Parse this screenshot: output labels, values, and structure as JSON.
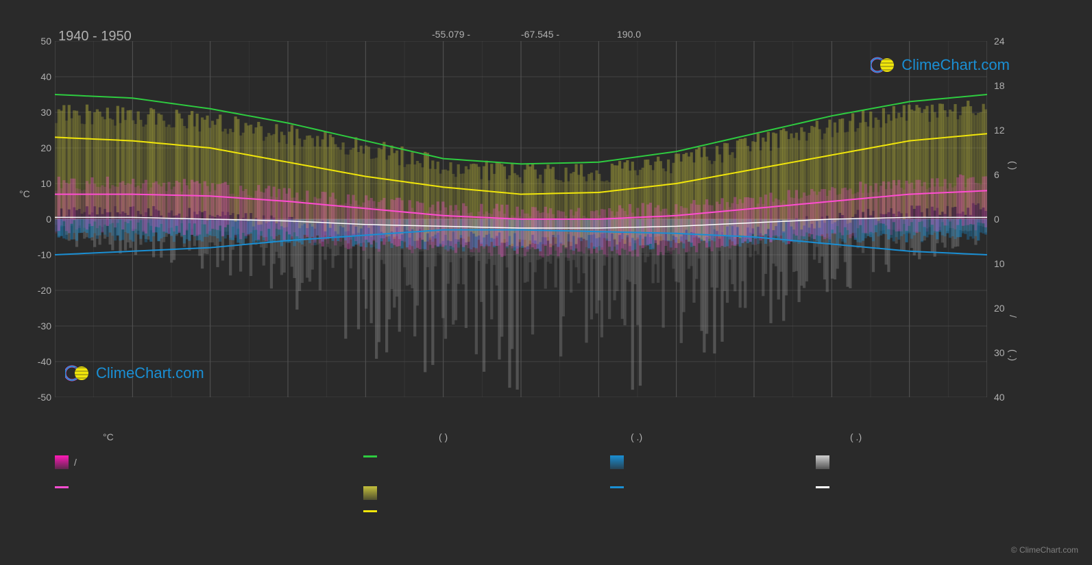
{
  "title": "1940 - 1950",
  "coords": {
    "lat": "-55.079 -",
    "lon": "-67.545 -",
    "elev": "190.0"
  },
  "brand": "ClimeChart.com",
  "copyright": "© ClimeChart.com",
  "chart": {
    "type": "climate-chart",
    "background_color": "#2a2a2a",
    "grid_color": "#555555",
    "grid_color_inner": "#404040",
    "y_left": {
      "title": "°C",
      "min": -50,
      "max": 50,
      "ticks": [
        50,
        40,
        30,
        20,
        10,
        0,
        -10,
        -20,
        -30,
        -40,
        -50
      ],
      "label_fontsize": 14
    },
    "y_right": {
      "min_top": 24,
      "ticks_top": [
        24,
        18,
        12,
        6,
        0
      ],
      "ticks_bottom": [
        10,
        20,
        30,
        40
      ],
      "label_fontsize": 14
    },
    "x": {
      "months": 12,
      "gridlines_per_month": 2
    },
    "series": {
      "green_line": {
        "color": "#2ecc40",
        "width": 2,
        "values": [
          35,
          34,
          31,
          27,
          22,
          17,
          15.5,
          16,
          19,
          24,
          29,
          33,
          35
        ]
      },
      "yellow_line": {
        "color": "#f1e60a",
        "width": 2,
        "values": [
          23,
          22,
          20,
          16,
          12,
          9,
          7,
          7.5,
          10,
          14,
          18,
          22,
          24
        ]
      },
      "pink_line": {
        "color": "#ff4dd2",
        "width": 2,
        "values": [
          7,
          7,
          6.5,
          5,
          3,
          1,
          0,
          0,
          1,
          3,
          5,
          7,
          8
        ]
      },
      "white_line": {
        "color": "#ffffff",
        "width": 1.5,
        "values": [
          0.5,
          0.5,
          0,
          -0.5,
          -1.5,
          -2,
          -2.5,
          -2.5,
          -2,
          -1,
          0,
          0.5,
          0.5
        ]
      },
      "blue_line": {
        "color": "#1a8fd4",
        "width": 2,
        "values": [
          -10,
          -9,
          -8,
          -6,
          -4.5,
          -3,
          -3,
          -3.5,
          -4,
          -5,
          -7,
          -9,
          -10
        ]
      },
      "yellow_bars": {
        "color": "#c4c03c",
        "opacity": 0.45,
        "top_profile": [
          30,
          29,
          27,
          24,
          20,
          15,
          13,
          13,
          16,
          21,
          26,
          30,
          31
        ],
        "bottom_profile": [
          2,
          2,
          1,
          -1,
          -3,
          -5,
          -6,
          -6,
          -5,
          -3,
          0,
          2,
          3
        ]
      },
      "pink_bars": {
        "color": "#ff4dd2",
        "opacity": 0.35,
        "top_profile": [
          10,
          10,
          9,
          7,
          5,
          3,
          2,
          2,
          3,
          5,
          8,
          10,
          11
        ],
        "bottom_profile": [
          -2,
          -2,
          -3,
          -5,
          -7,
          -8,
          -9,
          -9,
          -8,
          -6,
          -4,
          -2,
          -1
        ]
      },
      "blue_bars": {
        "color": "#1a8fd4",
        "opacity": 0.5,
        "top_profile": [
          0,
          0,
          0,
          0,
          0,
          0,
          0,
          0,
          0,
          0,
          0,
          0,
          0
        ],
        "bottom_profile": [
          -5,
          -5,
          -5.5,
          -6,
          -6.5,
          -7,
          -7,
          -7,
          -6.5,
          -6,
          -5.5,
          -5,
          -5
        ]
      },
      "grey_bars": {
        "color": "#a0a0a0",
        "opacity": 0.35,
        "baseline": 0,
        "max_depth": -50,
        "profile": [
          -8,
          -10,
          -15,
          -25,
          -38,
          -48,
          -50,
          -50,
          -45,
          -35,
          -22,
          -12,
          -8
        ]
      }
    }
  },
  "legend": {
    "header_temp": "°C",
    "header_paren1": "(        )",
    "header_paren2": "(  .)",
    "header_paren3": "(  .)",
    "items": [
      {
        "type": "swatch",
        "color": "#ff1ab8",
        "label": "/"
      },
      {
        "type": "line",
        "color": "#2ecc40",
        "label": ""
      },
      {
        "type": "swatch",
        "color": "#1a8fd4",
        "label": ""
      },
      {
        "type": "swatch",
        "color": "#d0d0d0",
        "label": ""
      },
      {
        "type": "line",
        "color": "#ff4dd2",
        "label": ""
      },
      {
        "type": "swatch",
        "color": "#c4c03c",
        "label": ""
      },
      {
        "type": "line",
        "color": "#1a8fd4",
        "label": ""
      },
      {
        "type": "line",
        "color": "#ffffff",
        "label": ""
      },
      {
        "type": "line",
        "color": "#f1e60a",
        "label": ""
      }
    ]
  }
}
